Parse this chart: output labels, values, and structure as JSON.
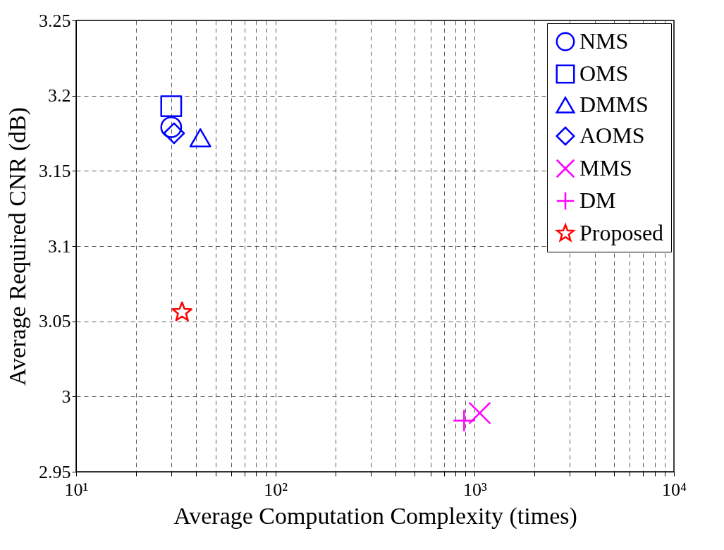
{
  "chart_data": {
    "type": "scatter",
    "xlabel": "Average Computation Complexity (times)",
    "ylabel": "Average Required CNR (dB)",
    "log": "x",
    "grid": true,
    "legend": "top right",
    "xlim": [
      10,
      10000
    ],
    "ylim": [
      2.95,
      3.25
    ],
    "xticks": [
      {
        "value": 10,
        "label": "10¹"
      },
      {
        "value": 20,
        "label": null
      },
      {
        "value": 30,
        "label": null
      },
      {
        "value": 40,
        "label": null
      },
      {
        "value": 50,
        "label": null
      },
      {
        "value": 60,
        "label": null
      },
      {
        "value": 70,
        "label": null
      },
      {
        "value": 80,
        "label": null
      },
      {
        "value": 90,
        "label": null
      },
      {
        "value": 100,
        "label": "10²"
      },
      {
        "value": 200,
        "label": null
      },
      {
        "value": 300,
        "label": null
      },
      {
        "value": 400,
        "label": null
      },
      {
        "value": 500,
        "label": null
      },
      {
        "value": 600,
        "label": null
      },
      {
        "value": 700,
        "label": null
      },
      {
        "value": 800,
        "label": null
      },
      {
        "value": 900,
        "label": null
      },
      {
        "value": 1000,
        "label": "10³"
      },
      {
        "value": 2000,
        "label": null
      },
      {
        "value": 3000,
        "label": null
      },
      {
        "value": 4000,
        "label": null
      },
      {
        "value": 5000,
        "label": null
      },
      {
        "value": 6000,
        "label": null
      },
      {
        "value": 7000,
        "label": null
      },
      {
        "value": 8000,
        "label": null
      },
      {
        "value": 9000,
        "label": null
      },
      {
        "value": 10000,
        "label": "10⁴"
      }
    ],
    "yticks": [
      2.95,
      3,
      3.05,
      3.1,
      3.15,
      3.2,
      3.25
    ],
    "series": [
      {
        "name": "NMS",
        "color": "#0000ff",
        "marker": "circle",
        "x": [
          30
        ],
        "values": [
          3.179
        ]
      },
      {
        "name": "OMS",
        "color": "#0000ff",
        "marker": "square",
        "x": [
          30
        ],
        "values": [
          3.193
        ]
      },
      {
        "name": "DMMS",
        "color": "#0000ff",
        "marker": "triangle",
        "x": [
          42
        ],
        "values": [
          3.172
        ]
      },
      {
        "name": "AOMS",
        "color": "#0000ff",
        "marker": "diamond",
        "x": [
          31
        ],
        "values": [
          3.175
        ]
      },
      {
        "name": "MMS",
        "color": "#ff00ff",
        "marker": "cross",
        "x": [
          1060
        ],
        "values": [
          2.989
        ]
      },
      {
        "name": "DM",
        "color": "#ff00ff",
        "marker": "plus",
        "x": [
          885
        ],
        "values": [
          2.984
        ]
      },
      {
        "name": "Proposed",
        "color": "#ff0000",
        "marker": "star",
        "x": [
          34
        ],
        "values": [
          3.056
        ]
      }
    ]
  }
}
